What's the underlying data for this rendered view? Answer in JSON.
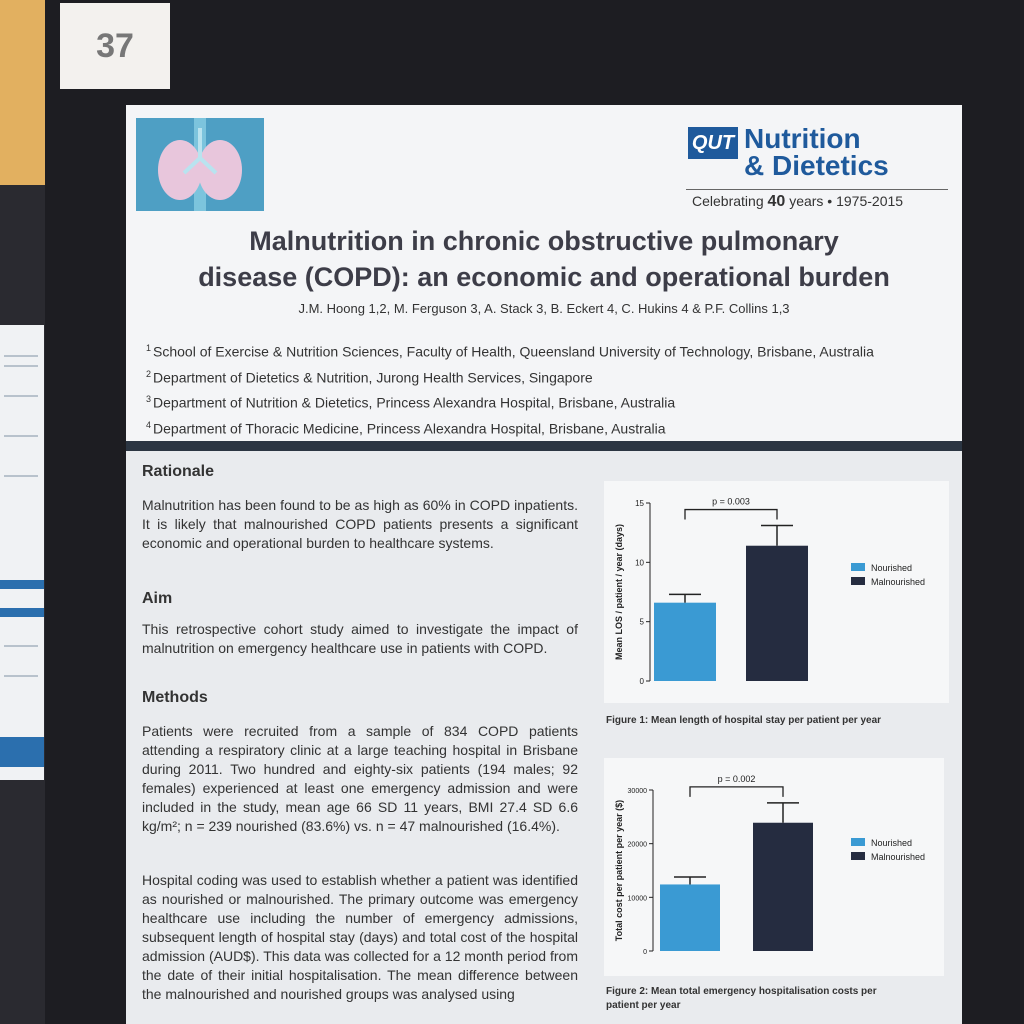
{
  "board": {
    "poster_number": "37"
  },
  "header": {
    "logo": {
      "mark": "QUT",
      "line1": "Nutrition",
      "line2": "& Dietetics",
      "celebrating_pre": "Celebrating",
      "years": "40",
      "celebrating_post": "years • 1975-2015"
    },
    "title_line1": "Malnutrition in chronic obstructive pulmonary",
    "title_line2": "disease (COPD): an economic and operational burden",
    "authors": "J.M. Hoong 1,2, M. Ferguson 3, A. Stack 3, B. Eckert 4, C. Hukins 4 & P.F. Collins 1,3",
    "affiliations": [
      {
        "num": "1",
        "text": "School of Exercise & Nutrition Sciences, Faculty of Health, Queensland University of Technology, Brisbane, Australia"
      },
      {
        "num": "2",
        "text": "Department of Dietetics & Nutrition, Jurong Health Services, Singapore"
      },
      {
        "num": "3",
        "text": "Department of Nutrition & Dietetics, Princess Alexandra Hospital, Brisbane, Australia"
      },
      {
        "num": "4",
        "text": "Department of Thoracic Medicine, Princess Alexandra Hospital, Brisbane, Australia"
      }
    ]
  },
  "sections": {
    "rationale": {
      "heading": "Rationale",
      "text": "Malnutrition has been found to be as high as 60% in COPD inpatients. It is likely that malnourished COPD patients presents a significant economic and operational burden to healthcare systems."
    },
    "aim": {
      "heading": "Aim",
      "text": "This retrospective cohort study aimed to investigate the impact of malnutrition on emergency healthcare use in patients with COPD."
    },
    "methods": {
      "heading": "Methods",
      "text1": "Patients were recruited from a sample of 834 COPD patients attending a respiratory clinic at a large teaching hospital in Brisbane during 2011. Two hundred and eighty-six patients (194 males; 92 females) experienced at least one emergency admission and were included in the study, mean age 66 SD 11 years, BMI 27.4 SD 6.6 kg/m²; n = 239 nourished (83.6%) vs. n = 47 malnourished (16.4%).",
      "text2": "Hospital coding was used to establish whether a patient was identified as nourished or malnourished. The primary outcome was emergency healthcare use including the number of emergency admissions, subsequent length of hospital stay (days) and total cost of the hospital admission (AUD$). This data was collected for a 12 month period from the date of their initial hospitalisation. The mean difference between the malnourished and nourished groups was analysed using"
    }
  },
  "chart_data": [
    {
      "type": "bar",
      "categories": [
        "Nourished",
        "Malnourished"
      ],
      "values": [
        6.6,
        11.4
      ],
      "errors": [
        0.7,
        1.7
      ],
      "ylabel": "Mean LOS / patient / year (days)",
      "ylim": [
        0,
        15
      ],
      "yticks": [
        "0",
        "5",
        "10",
        "15"
      ],
      "legend": [
        "Nourished",
        "Malnourished"
      ],
      "legend_position": "right",
      "colors": [
        "#3a9ad3",
        "#252c40"
      ],
      "annotation": "p = 0.003",
      "caption": "Figure 1: Mean length of hospital stay per patient per year"
    },
    {
      "type": "bar",
      "categories": [
        "Nourished",
        "Malnourished"
      ],
      "values": [
        12400,
        23900
      ],
      "errors": [
        1400,
        3700
      ],
      "ylabel": "Total cost per patient per year ($)",
      "ylim": [
        0,
        30000
      ],
      "yticks": [
        "0",
        "10000",
        "20000",
        "30000"
      ],
      "legend": [
        "Nourished",
        "Malnourished"
      ],
      "legend_position": "right",
      "colors": [
        "#3a9ad3",
        "#252c40"
      ],
      "annotation": "p = 0.002",
      "caption": "Figure 2: Mean total emergency hospitalisation costs per patient per year"
    }
  ]
}
